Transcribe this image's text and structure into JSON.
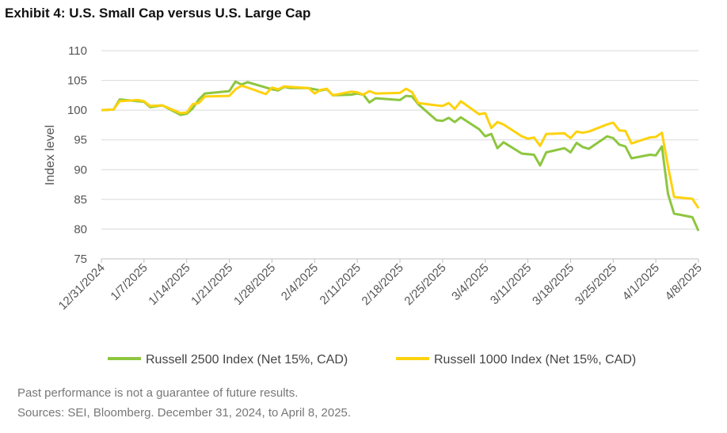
{
  "chart_data": {
    "type": "line",
    "title": "Exhibit 4: U.S. Small Cap versus U.S. Large Cap",
    "y_label": "Index level",
    "x": [
      "12/31/2024",
      "1/2/2025",
      "1/3/2025",
      "1/6/2025",
      "1/7/2025",
      "1/8/2025",
      "1/10/2025",
      "1/13/2025",
      "1/14/2025",
      "1/15/2025",
      "1/16/2025",
      "1/17/2025",
      "1/21/2025",
      "1/22/2025",
      "1/23/2025",
      "1/24/2025",
      "1/27/2025",
      "1/28/2025",
      "1/29/2025",
      "1/30/2025",
      "1/31/2025",
      "2/3/2025",
      "2/4/2025",
      "2/5/2025",
      "2/6/2025",
      "2/7/2025",
      "2/10/2025",
      "2/11/2025",
      "2/12/2025",
      "2/13/2025",
      "2/14/2025",
      "2/18/2025",
      "2/19/2025",
      "2/20/2025",
      "2/21/2025",
      "2/24/2025",
      "2/25/2025",
      "2/26/2025",
      "2/27/2025",
      "2/28/2025",
      "3/3/2025",
      "3/4/2025",
      "3/5/2025",
      "3/6/2025",
      "3/7/2025",
      "3/10/2025",
      "3/11/2025",
      "3/12/2025",
      "3/13/2025",
      "3/14/2025",
      "3/17/2025",
      "3/18/2025",
      "3/19/2025",
      "3/20/2025",
      "3/21/2025",
      "3/24/2025",
      "3/25/2025",
      "3/26/2025",
      "3/27/2025",
      "3/28/2025",
      "3/31/2025",
      "4/1/2025",
      "4/2/2025",
      "4/3/2025",
      "4/4/2025",
      "4/7/2025",
      "4/8/2025"
    ],
    "series": [
      {
        "name": "Russell 2500 Index (Net 15%, CAD)",
        "color": "#8dc63f",
        "values": [
          100,
          100.1,
          101.8,
          101.5,
          101.4,
          100.5,
          100.8,
          99.2,
          99.4,
          100.3,
          101.8,
          102.8,
          103.2,
          104.8,
          104.3,
          104.7,
          103.8,
          103.5,
          103.3,
          103.9,
          103.7,
          103.7,
          103.5,
          103.3,
          103.5,
          102.5,
          102.6,
          102.8,
          102.6,
          101.3,
          102.0,
          101.7,
          102.4,
          102.3,
          101.0,
          98.3,
          98.2,
          98.7,
          98.0,
          98.8,
          96.8,
          95.6,
          96.0,
          93.6,
          94.6,
          92.7,
          92.6,
          92.5,
          90.7,
          92.9,
          93.6,
          92.9,
          94.5,
          93.8,
          93.5,
          95.6,
          95.3,
          94.2,
          93.9,
          91.9,
          92.5,
          92.4,
          93.9,
          85.9,
          82.6,
          82.0,
          79.7
        ]
      },
      {
        "name": "Russell 1000 Index (Net 15%, CAD)",
        "color": "#fdd20e",
        "values": [
          100,
          100.1,
          101.5,
          101.7,
          101.5,
          100.7,
          100.8,
          99.5,
          99.6,
          101.0,
          101.2,
          102.3,
          102.4,
          103.5,
          104.1,
          103.8,
          102.7,
          103.8,
          103.5,
          104.0,
          103.9,
          103.7,
          102.8,
          103.4,
          103.6,
          102.5,
          103.1,
          103.0,
          102.6,
          103.2,
          102.8,
          102.9,
          103.6,
          103.0,
          101.2,
          100.8,
          100.7,
          101.2,
          100.2,
          101.5,
          99.3,
          99.5,
          97.0,
          98.0,
          97.6,
          95.6,
          95.2,
          95.4,
          94.0,
          96.0,
          96.1,
          95.3,
          96.4,
          96.2,
          96.4,
          97.6,
          97.9,
          96.6,
          96.5,
          94.4,
          95.4,
          95.5,
          96.2,
          90.6,
          85.4,
          85.1,
          83.5
        ]
      }
    ],
    "xlim": [
      "12/31/2024",
      "4/8/2025"
    ],
    "xticks": [
      "12/31/2024",
      "1/7/2025",
      "1/14/2025",
      "1/21/2025",
      "1/28/2025",
      "2/4/2025",
      "2/11/2025",
      "2/18/2025",
      "2/25/2025",
      "3/4/2025",
      "3/11/2025",
      "3/18/2025",
      "3/25/2025",
      "4/1/2025",
      "4/8/2025"
    ],
    "ylim": [
      75,
      110
    ],
    "yticks": [
      75,
      80,
      85,
      90,
      95,
      100,
      105,
      110
    ],
    "grid": true,
    "legend": "bottom"
  },
  "footnotes": [
    "Past performance is not a guarantee of future results.",
    "Sources: SEI, Bloomberg. December 31, 2024, to April 8, 2025."
  ]
}
